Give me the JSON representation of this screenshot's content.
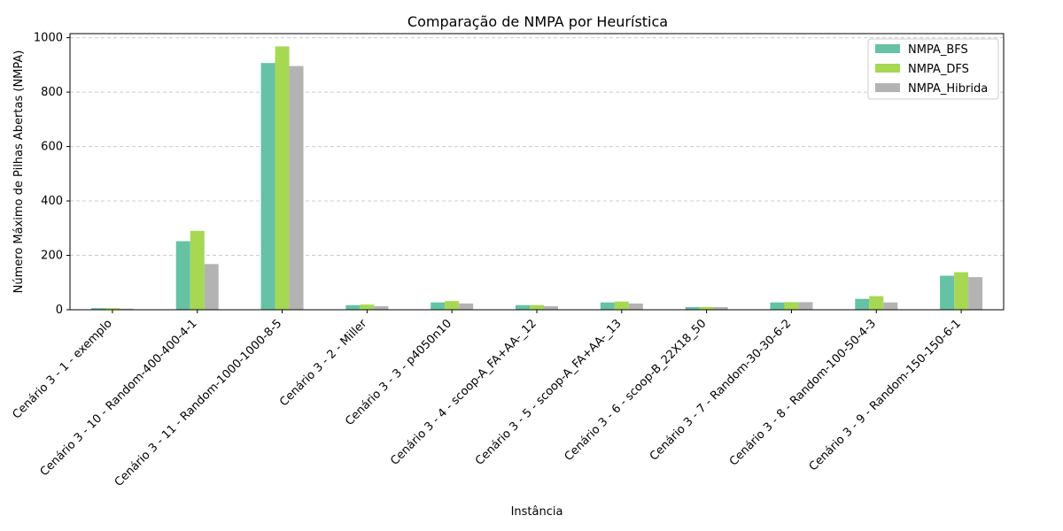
{
  "chart_data": {
    "type": "bar",
    "title": "Comparação de NMPA por Heurística",
    "xlabel": "Instância",
    "ylabel": "Número Máximo de Pilhas Abertas (NMPA)",
    "ylim": [
      0,
      1015
    ],
    "yticks": [
      0,
      200,
      400,
      600,
      800,
      1000
    ],
    "grid": "y-dashed",
    "legend_position": "top-right",
    "categories": [
      "Cenário 3 - 1 - exemplo",
      "Cenário 3 - 10 - Random-400-400-4-1",
      "Cenário 3 - 11 - Random-1000-1000-8-5",
      "Cenário 3 - 2 - Miller",
      "Cenário 3 - 3 - p4050n10",
      "Cenário 3 - 4 - scoop-A_FA+AA-_12",
      "Cenário 3 - 5 - scoop-A_FA+AA-_13",
      "Cenário 3 - 6 - scoop-B_22X18_50",
      "Cenário 3 - 7 - Random-30-30-6-2",
      "Cenário 3 - 8 - Random-100-50-4-3",
      "Cenário 3 - 9 - Random-150-150-6-1"
    ],
    "series": [
      {
        "name": "NMPA_BFS",
        "color": "#66c2a5",
        "values": [
          6,
          252,
          907,
          17,
          27,
          17,
          27,
          10,
          27,
          40,
          125
        ]
      },
      {
        "name": "NMPA_DFS",
        "color": "#a6d854",
        "values": [
          6,
          290,
          968,
          19,
          32,
          17,
          30,
          10,
          28,
          50,
          138
        ]
      },
      {
        "name": "NMPA_Hibrida",
        "color": "#b3b3b3",
        "values": [
          4,
          168,
          896,
          13,
          23,
          13,
          23,
          10,
          28,
          27,
          120
        ]
      }
    ]
  }
}
